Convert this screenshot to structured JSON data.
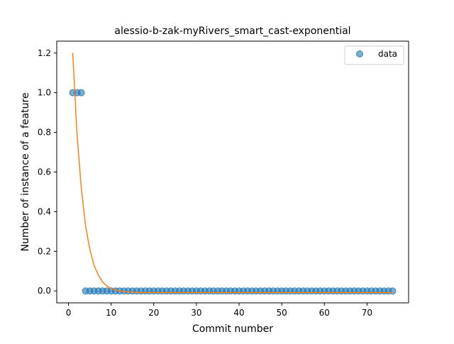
{
  "chart_data": {
    "type": "scatter",
    "title": "alessio-b-zak-myRivers_smart_cast-exponential",
    "xlabel": "Commit number",
    "ylabel": "Number of instance of a feature",
    "xlim": [
      -2.75,
      79.75
    ],
    "ylim": [
      -0.06,
      1.26
    ],
    "xticks": [
      0,
      10,
      20,
      30,
      40,
      50,
      60,
      70
    ],
    "xtick_labels": [
      "0",
      "10",
      "20",
      "30",
      "40",
      "50",
      "60",
      "70"
    ],
    "yticks": [
      0.0,
      0.2,
      0.4,
      0.6,
      0.8,
      1.0,
      1.2
    ],
    "ytick_labels": [
      "0.0",
      "0.2",
      "0.4",
      "0.6",
      "0.8",
      "1.0",
      "1.2"
    ],
    "grid": false,
    "legend": {
      "placement": "top-right",
      "entries": [
        "data"
      ]
    },
    "series": [
      {
        "name": "data",
        "kind": "scatter",
        "color": "#1f77b4",
        "x": [
          1,
          2,
          3,
          4,
          5,
          6,
          7,
          8,
          9,
          10,
          11,
          12,
          13,
          14,
          15,
          16,
          17,
          18,
          19,
          20,
          21,
          22,
          23,
          24,
          25,
          26,
          27,
          28,
          29,
          30,
          31,
          32,
          33,
          34,
          35,
          36,
          37,
          38,
          39,
          40,
          41,
          42,
          43,
          44,
          45,
          46,
          47,
          48,
          49,
          50,
          51,
          52,
          53,
          54,
          55,
          56,
          57,
          58,
          59,
          60,
          61,
          62,
          63,
          64,
          65,
          66,
          67,
          68,
          69,
          70,
          71,
          72,
          73,
          74,
          75,
          76
        ],
        "y": [
          1,
          1,
          1,
          0,
          0,
          0,
          0,
          0,
          0,
          0,
          0,
          0,
          0,
          0,
          0,
          0,
          0,
          0,
          0,
          0,
          0,
          0,
          0,
          0,
          0,
          0,
          0,
          0,
          0,
          0,
          0,
          0,
          0,
          0,
          0,
          0,
          0,
          0,
          0,
          0,
          0,
          0,
          0,
          0,
          0,
          0,
          0,
          0,
          0,
          0,
          0,
          0,
          0,
          0,
          0,
          0,
          0,
          0,
          0,
          0,
          0,
          0,
          0,
          0,
          0,
          0,
          0,
          0,
          0,
          0,
          0,
          0,
          0,
          0,
          0,
          0
        ]
      },
      {
        "kind": "line",
        "color": "#ff7f0e",
        "x": [
          1,
          2,
          3,
          4,
          5,
          6,
          7,
          8,
          9,
          10,
          11,
          12,
          13,
          14,
          15,
          16,
          17,
          18,
          19,
          20,
          22,
          25,
          30,
          35,
          40,
          45,
          50,
          55,
          60,
          65,
          70,
          76
        ],
        "y": [
          1.2,
          0.79,
          0.52,
          0.33,
          0.21,
          0.13,
          0.08,
          0.046,
          0.025,
          0.013,
          0.005,
          0.0,
          -0.003,
          -0.005,
          -0.006,
          -0.007,
          -0.0075,
          -0.008,
          -0.008,
          -0.008,
          -0.008,
          -0.008,
          -0.008,
          -0.008,
          -0.008,
          -0.008,
          -0.008,
          -0.008,
          -0.008,
          -0.008,
          -0.008,
          -0.008
        ]
      }
    ]
  }
}
